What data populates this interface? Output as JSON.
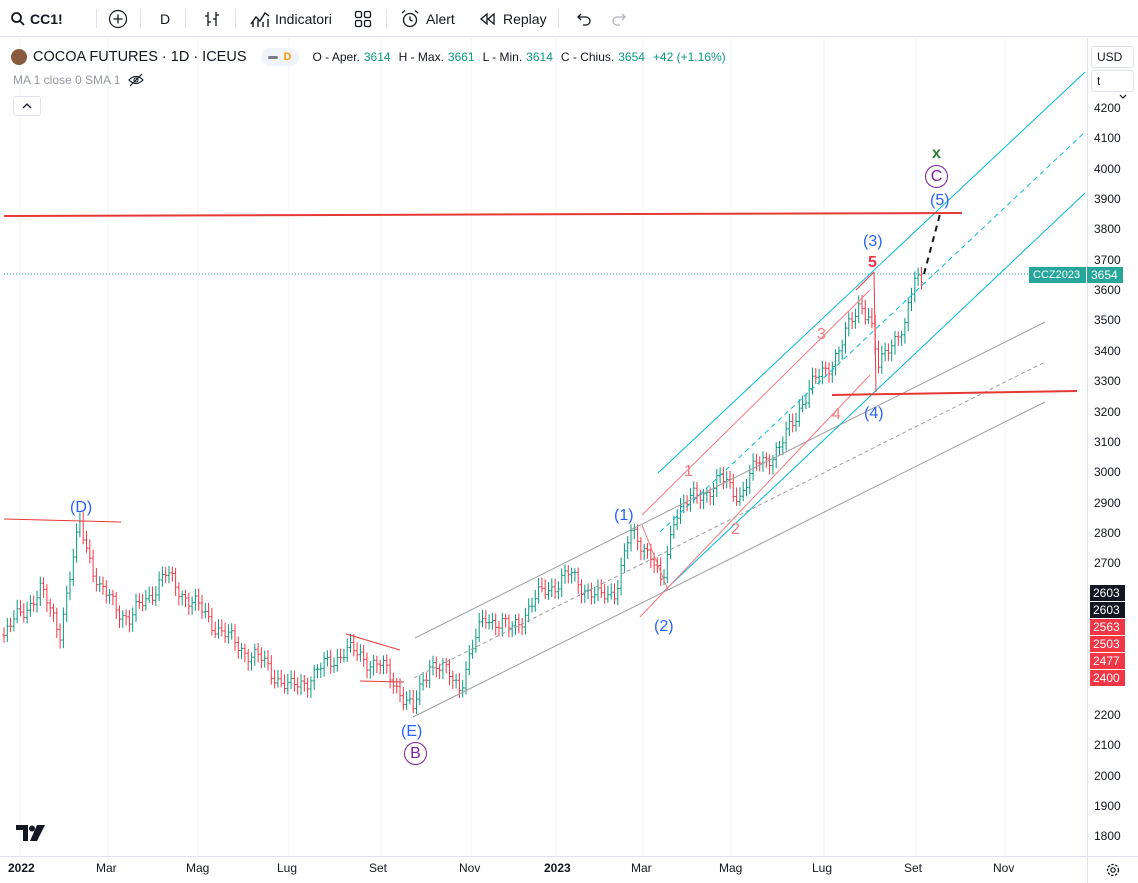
{
  "toolbar": {
    "symbol": "CC1!",
    "interval": "D",
    "indicators_label": "Indicatori",
    "alert_label": "Alert",
    "replay_label": "Replay",
    "icons": [
      "search-icon",
      "add-symbol-icon",
      "bar-style-icon",
      "indicators-icon",
      "templates-icon",
      "alert-icon",
      "replay-icon",
      "undo-icon",
      "redo-icon"
    ]
  },
  "legend": {
    "title": "COCOA FUTURES · 1D · ICEUS",
    "pill_letter": "D",
    "open_label": "O - Aper.",
    "open": "3614",
    "high_label": "H - Max.",
    "high": "3661",
    "low_label": "L - Min.",
    "low": "3614",
    "close_label": "C - Chius.",
    "close": "3654",
    "change": "+42 (+1.16%)",
    "indicator": "MA 1 close 0 SMA 1"
  },
  "price_axis": {
    "currency": "USD",
    "unit": "t",
    "ticks": [
      "4200",
      "4100",
      "4000",
      "3900",
      "3800",
      "3700",
      "3600",
      "3500",
      "3400",
      "3300",
      "3200",
      "3100",
      "3000",
      "2900",
      "2800",
      "2700",
      "2200",
      "2100",
      "2000",
      "1900",
      "1800"
    ],
    "series_label": "CCZ2023",
    "last_price": "3654",
    "tags": [
      {
        "text": "2603",
        "color": "#131722"
      },
      {
        "text": "2603",
        "color": "#131722"
      },
      {
        "text": "2563",
        "color": "#f23645"
      },
      {
        "text": "2503",
        "color": "#f23645"
      },
      {
        "text": "2477",
        "color": "#f23645"
      },
      {
        "text": "2400",
        "color": "#f23645"
      }
    ]
  },
  "time_axis": {
    "labels": [
      "2022",
      "Mar",
      "Mag",
      "Lug",
      "Set",
      "Nov",
      "2023",
      "Mar",
      "Mag",
      "Lug",
      "Set",
      "Nov"
    ]
  },
  "waves": {
    "D": "(D)",
    "E": "(E)",
    "B": "B",
    "w1": "(1)",
    "w2": "(2)",
    "w3": "(3)",
    "w4": "(4)",
    "w5": "(5)",
    "C": "C",
    "X": "x",
    "s1": "1",
    "s2": "2",
    "s3": "3",
    "s4": "4",
    "s5": "5"
  },
  "colors": {
    "up": "#089981",
    "down": "#f23645",
    "channel": "#00bcd4",
    "wave_blue": "#2962ff",
    "wave_red": "#f23645",
    "wave_purple": "#7b1fa2"
  }
}
